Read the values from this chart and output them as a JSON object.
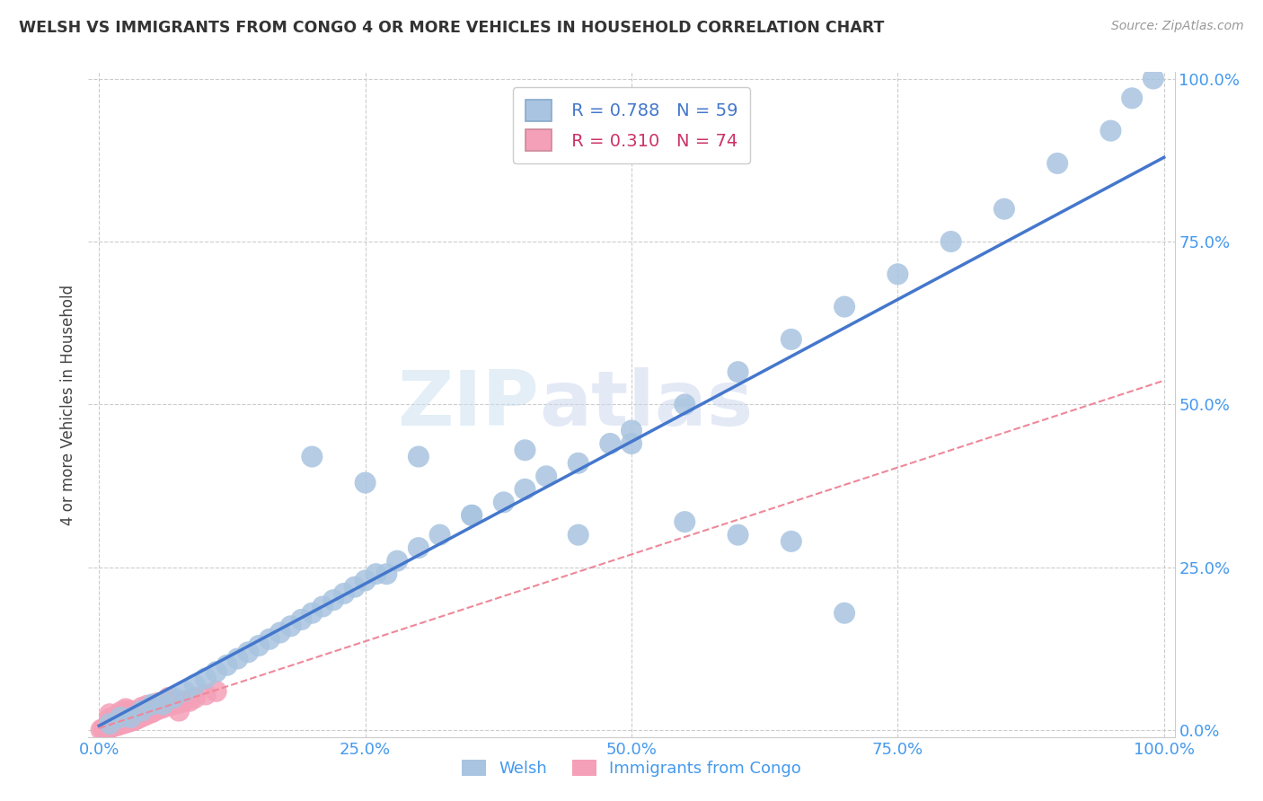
{
  "title": "WELSH VS IMMIGRANTS FROM CONGO 4 OR MORE VEHICLES IN HOUSEHOLD CORRELATION CHART",
  "source": "Source: ZipAtlas.com",
  "ylabel": "4 or more Vehicles in Household",
  "background_color": "#ffffff",
  "plot_bg_color": "#ffffff",
  "grid_color": "#cccccc",
  "welsh_color": "#a8c4e0",
  "congo_color": "#f4a0b8",
  "welsh_line_color": "#4477cc",
  "congo_line_color": "#ee8899",
  "legend_R_welsh": "R = 0.788",
  "legend_N_welsh": "N = 59",
  "legend_R_congo": "R = 0.310",
  "legend_N_congo": "N = 74",
  "legend_welsh_label": "Welsh",
  "legend_congo_label": "Immigrants from Congo",
  "xlim": [
    -0.01,
    1.01
  ],
  "ylim": [
    -0.01,
    1.01
  ],
  "xticks": [
    0,
    0.25,
    0.5,
    0.75,
    1.0
  ],
  "yticks": [
    0,
    0.25,
    0.5,
    0.75,
    1.0
  ],
  "xtick_labels": [
    "0.0%",
    "25.0%",
    "50.0%",
    "75.0%",
    "100.0%"
  ],
  "ytick_labels": [
    "0.0%",
    "25.0%",
    "50.0%",
    "75.0%",
    "100.0%"
  ],
  "welsh_scatter_x": [
    0.01,
    0.02,
    0.03,
    0.04,
    0.05,
    0.06,
    0.07,
    0.08,
    0.09,
    0.1,
    0.11,
    0.12,
    0.13,
    0.14,
    0.15,
    0.16,
    0.17,
    0.18,
    0.19,
    0.2,
    0.21,
    0.22,
    0.23,
    0.24,
    0.25,
    0.26,
    0.27,
    0.28,
    0.3,
    0.32,
    0.35,
    0.38,
    0.4,
    0.42,
    0.45,
    0.48,
    0.5,
    0.55,
    0.6,
    0.65,
    0.7,
    0.75,
    0.8,
    0.85,
    0.9,
    0.95,
    0.97,
    0.99,
    0.2,
    0.25,
    0.3,
    0.35,
    0.4,
    0.45,
    0.5,
    0.55,
    0.6,
    0.65,
    0.7
  ],
  "welsh_scatter_y": [
    0.01,
    0.02,
    0.02,
    0.03,
    0.04,
    0.04,
    0.05,
    0.06,
    0.07,
    0.08,
    0.09,
    0.1,
    0.11,
    0.12,
    0.13,
    0.14,
    0.15,
    0.16,
    0.17,
    0.18,
    0.19,
    0.2,
    0.21,
    0.22,
    0.23,
    0.24,
    0.24,
    0.26,
    0.28,
    0.3,
    0.33,
    0.35,
    0.37,
    0.39,
    0.41,
    0.44,
    0.46,
    0.5,
    0.55,
    0.6,
    0.65,
    0.7,
    0.75,
    0.8,
    0.87,
    0.92,
    0.97,
    1.0,
    0.42,
    0.38,
    0.42,
    0.33,
    0.43,
    0.3,
    0.44,
    0.32,
    0.3,
    0.29,
    0.18
  ],
  "congo_scatter_x": [
    0.002,
    0.004,
    0.005,
    0.006,
    0.007,
    0.008,
    0.009,
    0.01,
    0.011,
    0.012,
    0.013,
    0.014,
    0.015,
    0.016,
    0.017,
    0.018,
    0.019,
    0.02,
    0.021,
    0.022,
    0.023,
    0.024,
    0.025,
    0.026,
    0.027,
    0.028,
    0.029,
    0.03,
    0.031,
    0.032,
    0.033,
    0.034,
    0.035,
    0.036,
    0.038,
    0.04,
    0.042,
    0.044,
    0.046,
    0.048,
    0.05,
    0.055,
    0.06,
    0.065,
    0.07,
    0.075,
    0.08,
    0.09,
    0.1,
    0.11,
    0.01,
    0.015,
    0.02,
    0.025,
    0.03,
    0.035,
    0.04,
    0.05,
    0.06,
    0.07,
    0.01,
    0.015,
    0.02,
    0.025,
    0.008,
    0.012,
    0.018,
    0.025,
    0.035,
    0.045,
    0.055,
    0.065,
    0.075,
    0.085
  ],
  "congo_scatter_y": [
    0.001,
    0.002,
    0.002,
    0.003,
    0.003,
    0.004,
    0.004,
    0.005,
    0.005,
    0.006,
    0.006,
    0.007,
    0.007,
    0.008,
    0.008,
    0.009,
    0.009,
    0.01,
    0.01,
    0.011,
    0.011,
    0.012,
    0.012,
    0.013,
    0.013,
    0.014,
    0.014,
    0.015,
    0.015,
    0.016,
    0.016,
    0.017,
    0.018,
    0.018,
    0.02,
    0.021,
    0.023,
    0.024,
    0.026,
    0.027,
    0.028,
    0.032,
    0.035,
    0.038,
    0.04,
    0.042,
    0.045,
    0.05,
    0.055,
    0.06,
    0.025,
    0.02,
    0.028,
    0.022,
    0.03,
    0.028,
    0.035,
    0.038,
    0.04,
    0.045,
    0.018,
    0.015,
    0.024,
    0.033,
    0.008,
    0.012,
    0.022,
    0.03,
    0.028,
    0.038,
    0.042,
    0.05,
    0.03,
    0.045
  ]
}
